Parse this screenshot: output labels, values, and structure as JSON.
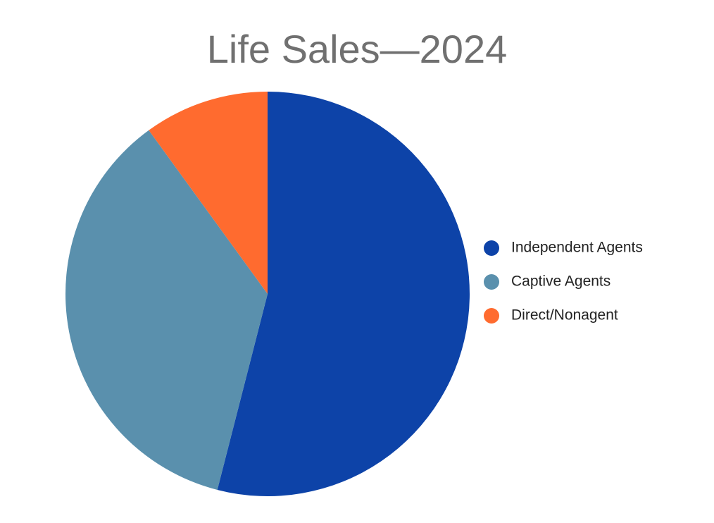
{
  "chart_data": {
    "type": "pie",
    "title": "Life Sales—2024",
    "categories": [
      "Independent Agents",
      "Captive Agents",
      "Direct/Nonagent"
    ],
    "values": [
      54,
      36,
      10
    ],
    "colors": [
      "#0d43a8",
      "#5a90ad",
      "#ff6b2f"
    ],
    "legend": "right"
  }
}
